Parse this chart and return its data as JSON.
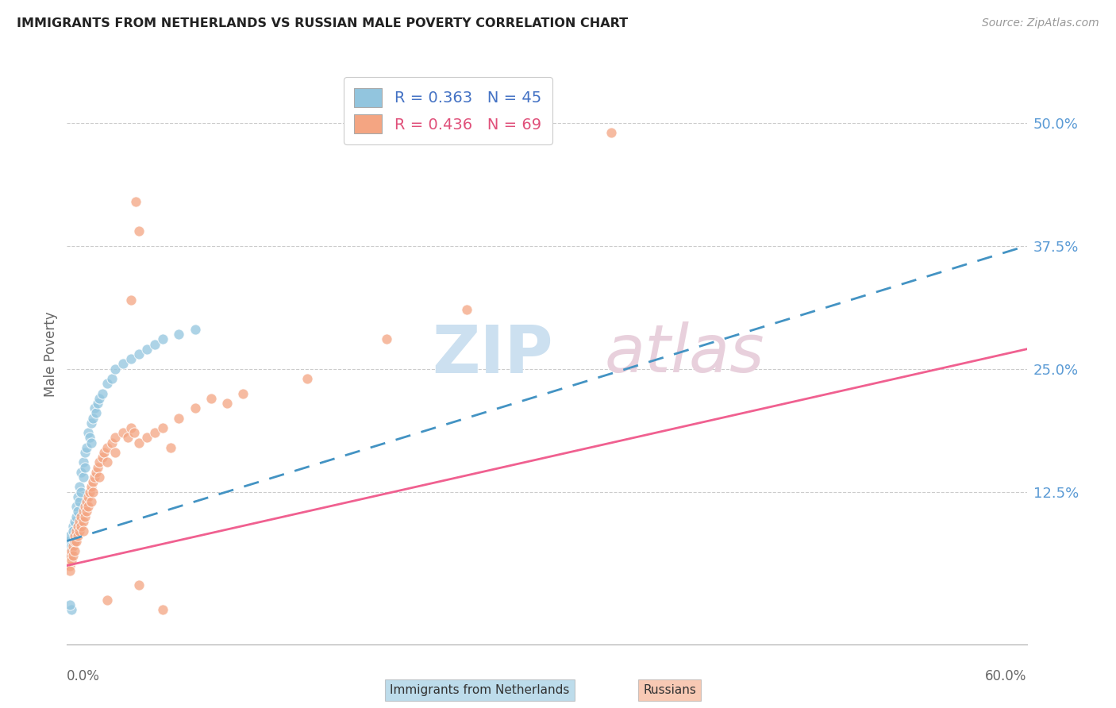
{
  "title": "IMMIGRANTS FROM NETHERLANDS VS RUSSIAN MALE POVERTY CORRELATION CHART",
  "source": "Source: ZipAtlas.com",
  "ylabel": "Male Poverty",
  "ytick_labels": [
    "12.5%",
    "25.0%",
    "37.5%",
    "50.0%"
  ],
  "ytick_values": [
    0.125,
    0.25,
    0.375,
    0.5
  ],
  "xlim": [
    0.0,
    0.6
  ],
  "ylim": [
    -0.03,
    0.56
  ],
  "color_netherlands": "#92c5de",
  "color_russia": "#f4a582",
  "color_netherlands_line": "#4393c3",
  "color_russia_line": "#f06090",
  "netherlands_scatter": [
    [
      0.001,
      0.075
    ],
    [
      0.002,
      0.08
    ],
    [
      0.002,
      0.065
    ],
    [
      0.003,
      0.07
    ],
    [
      0.003,
      0.06
    ],
    [
      0.004,
      0.09
    ],
    [
      0.004,
      0.085
    ],
    [
      0.005,
      0.095
    ],
    [
      0.005,
      0.075
    ],
    [
      0.006,
      0.11
    ],
    [
      0.006,
      0.1
    ],
    [
      0.007,
      0.12
    ],
    [
      0.007,
      0.105
    ],
    [
      0.008,
      0.13
    ],
    [
      0.008,
      0.115
    ],
    [
      0.009,
      0.145
    ],
    [
      0.009,
      0.125
    ],
    [
      0.01,
      0.155
    ],
    [
      0.01,
      0.14
    ],
    [
      0.011,
      0.165
    ],
    [
      0.011,
      0.15
    ],
    [
      0.012,
      0.17
    ],
    [
      0.013,
      0.185
    ],
    [
      0.014,
      0.18
    ],
    [
      0.015,
      0.195
    ],
    [
      0.015,
      0.175
    ],
    [
      0.016,
      0.2
    ],
    [
      0.017,
      0.21
    ],
    [
      0.018,
      0.205
    ],
    [
      0.019,
      0.215
    ],
    [
      0.02,
      0.22
    ],
    [
      0.022,
      0.225
    ],
    [
      0.025,
      0.235
    ],
    [
      0.028,
      0.24
    ],
    [
      0.03,
      0.25
    ],
    [
      0.035,
      0.255
    ],
    [
      0.04,
      0.26
    ],
    [
      0.045,
      0.265
    ],
    [
      0.05,
      0.27
    ],
    [
      0.055,
      0.275
    ],
    [
      0.06,
      0.28
    ],
    [
      0.07,
      0.285
    ],
    [
      0.08,
      0.29
    ],
    [
      0.003,
      0.005
    ],
    [
      0.002,
      0.01
    ]
  ],
  "russia_scatter": [
    [
      0.001,
      0.055
    ],
    [
      0.002,
      0.05
    ],
    [
      0.002,
      0.06
    ],
    [
      0.002,
      0.045
    ],
    [
      0.003,
      0.065
    ],
    [
      0.003,
      0.055
    ],
    [
      0.004,
      0.07
    ],
    [
      0.004,
      0.06
    ],
    [
      0.005,
      0.075
    ],
    [
      0.005,
      0.065
    ],
    [
      0.005,
      0.08
    ],
    [
      0.006,
      0.085
    ],
    [
      0.006,
      0.075
    ],
    [
      0.007,
      0.09
    ],
    [
      0.007,
      0.08
    ],
    [
      0.008,
      0.095
    ],
    [
      0.008,
      0.085
    ],
    [
      0.009,
      0.1
    ],
    [
      0.009,
      0.09
    ],
    [
      0.01,
      0.105
    ],
    [
      0.01,
      0.095
    ],
    [
      0.01,
      0.085
    ],
    [
      0.011,
      0.11
    ],
    [
      0.011,
      0.1
    ],
    [
      0.012,
      0.115
    ],
    [
      0.012,
      0.105
    ],
    [
      0.013,
      0.12
    ],
    [
      0.013,
      0.11
    ],
    [
      0.014,
      0.125
    ],
    [
      0.015,
      0.13
    ],
    [
      0.015,
      0.115
    ],
    [
      0.016,
      0.135
    ],
    [
      0.016,
      0.125
    ],
    [
      0.017,
      0.14
    ],
    [
      0.018,
      0.145
    ],
    [
      0.019,
      0.15
    ],
    [
      0.02,
      0.155
    ],
    [
      0.02,
      0.14
    ],
    [
      0.022,
      0.16
    ],
    [
      0.023,
      0.165
    ],
    [
      0.025,
      0.17
    ],
    [
      0.025,
      0.155
    ],
    [
      0.028,
      0.175
    ],
    [
      0.03,
      0.18
    ],
    [
      0.03,
      0.165
    ],
    [
      0.035,
      0.185
    ],
    [
      0.038,
      0.18
    ],
    [
      0.04,
      0.19
    ],
    [
      0.042,
      0.185
    ],
    [
      0.045,
      0.175
    ],
    [
      0.05,
      0.18
    ],
    [
      0.055,
      0.185
    ],
    [
      0.06,
      0.19
    ],
    [
      0.065,
      0.17
    ],
    [
      0.07,
      0.2
    ],
    [
      0.08,
      0.21
    ],
    [
      0.09,
      0.22
    ],
    [
      0.1,
      0.215
    ],
    [
      0.11,
      0.225
    ],
    [
      0.15,
      0.24
    ],
    [
      0.2,
      0.28
    ],
    [
      0.25,
      0.31
    ],
    [
      0.34,
      0.49
    ],
    [
      0.04,
      0.32
    ],
    [
      0.045,
      0.39
    ],
    [
      0.043,
      0.42
    ],
    [
      0.025,
      0.015
    ],
    [
      0.045,
      0.03
    ],
    [
      0.06,
      0.005
    ]
  ],
  "netherlands_trend": {
    "x_start": 0.0,
    "y_start": 0.075,
    "x_end": 0.6,
    "y_end": 0.375
  },
  "russia_trend": {
    "x_start": 0.0,
    "y_start": 0.05,
    "x_end": 0.6,
    "y_end": 0.27
  }
}
